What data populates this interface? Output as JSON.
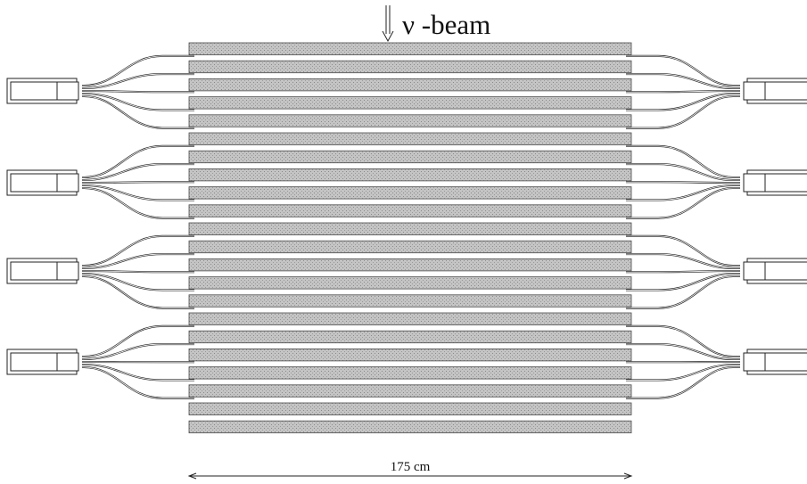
{
  "figure": {
    "beam_label": "ν -beam",
    "dimension_label": "175 cm",
    "strip_count": 22,
    "pmt_groups_per_side": 4,
    "fibers_per_group": 5,
    "colors": {
      "strip_fill": "#b8b8b8",
      "strip_edge": "#4a4a4a",
      "line": "#222222",
      "background": "#ffffff"
    }
  }
}
